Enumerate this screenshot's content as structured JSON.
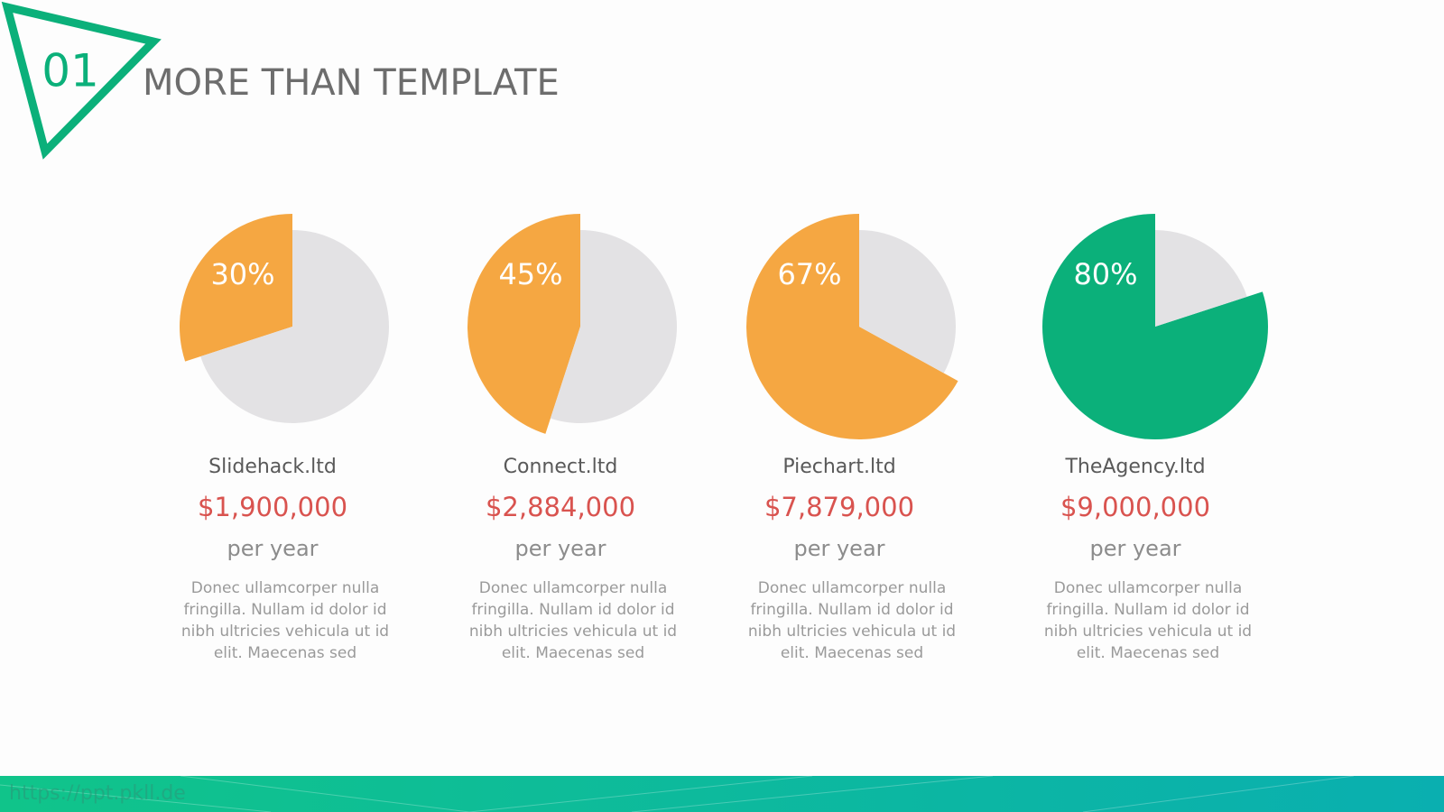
{
  "header": {
    "number": "01",
    "title": "MORE THAN TEMPLATE"
  },
  "footer": {
    "watermark": "https://ppt.pkll.de"
  },
  "chart_data": [
    {
      "type": "pie",
      "title": "Slidehack.ltd",
      "amount": "$1,900,000",
      "unit": "per year",
      "description": "Donec ullamcorper nulla fringilla. Nullam id dolor id nibh ultricies vehicula ut id elit. Maecenas sed",
      "values": [
        30,
        70
      ],
      "value_labels": [
        "30%",
        null
      ],
      "colors": [
        "#f5a742",
        "#e3e2e4"
      ]
    },
    {
      "type": "pie",
      "title": "Connect.ltd",
      "amount": "$2,884,000",
      "unit": "per year",
      "description": "Donec ullamcorper nulla fringilla. Nullam id dolor id nibh ultricies vehicula ut id elit. Maecenas sed",
      "values": [
        45,
        55
      ],
      "value_labels": [
        "45%",
        null
      ],
      "colors": [
        "#f5a742",
        "#e3e2e4"
      ]
    },
    {
      "type": "pie",
      "title": "Piechart.ltd",
      "amount": "$7,879,000",
      "unit": "per year",
      "description": "Donec ullamcorper nulla fringilla. Nullam id dolor id nibh ultricies vehicula ut id elit. Maecenas sed",
      "values": [
        67,
        33
      ],
      "value_labels": [
        "67%",
        null
      ],
      "colors": [
        "#f5a742",
        "#e3e2e4"
      ]
    },
    {
      "type": "pie",
      "title": "TheAgency.ltd",
      "amount": "$9,000,000",
      "unit": "per year",
      "description": "Donec ullamcorper nulla fringilla. Nullam id dolor id nibh ultricies vehicula ut id elit. Maecenas sed",
      "values": [
        80,
        20
      ],
      "value_labels": [
        "80%",
        null
      ],
      "colors": [
        "#0bb07a",
        "#e3e2e4"
      ]
    }
  ]
}
